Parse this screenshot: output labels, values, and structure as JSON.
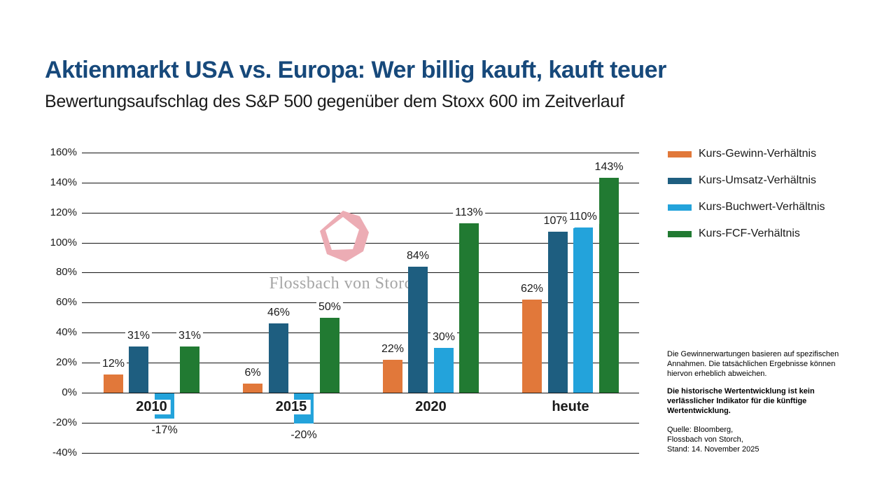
{
  "header": {
    "title": "Aktienmarkt USA vs. Europa: Wer billig kauft, kauft teuer",
    "subtitle": "Bewertungsaufschlag des S&P 500 gegenüber dem Stoxx 600 im Zeitverlauf"
  },
  "colors": {
    "title_navy": "#17497B",
    "watermark_pink": "#ECACB4",
    "watermark_gray": "#A6A6A6",
    "grid_black": "#141414"
  },
  "watermark": {
    "text": "Flossbach von Storch"
  },
  "chart_data": {
    "type": "bar",
    "categories": [
      "2010",
      "2015",
      "2020",
      "heute"
    ],
    "series": [
      {
        "name": "Kurs-Gewinn-Verhältnis",
        "color": "#E1783A",
        "values": [
          12,
          6,
          22,
          62
        ]
      },
      {
        "name": "Kurs-Umsatz-Verhältnis",
        "color": "#1E5E80",
        "values": [
          31,
          46,
          84,
          107
        ]
      },
      {
        "name": "Kurs-Buchwert-Verhältnis",
        "color": "#23A3DB",
        "values": [
          -17,
          -20,
          30,
          110
        ]
      },
      {
        "name": "Kurs-FCF-Verhältnis",
        "color": "#217A32",
        "values": [
          31,
          50,
          113,
          143
        ]
      }
    ],
    "value_suffix": "%",
    "ylim": [
      -40,
      160
    ],
    "ytick_step": 20,
    "grid": true,
    "legend_position": "right",
    "value_labels": true
  },
  "footnotes": {
    "disclaimer_lines": [
      "Die Gewinnerwartungen basieren auf spezifischen",
      "Annahmen. Die tatsächlichen Ergebnisse können",
      "hiervon erheblich abweichen."
    ],
    "warning_lines": [
      "Die historische Wertentwicklung ist kein",
      "verlässlicher Indikator für die künftige",
      "Wertentwicklung."
    ],
    "source_lines": [
      "Quelle: Bloomberg,",
      "Flossbach von Storch,",
      "Stand: 14. November 2025"
    ]
  }
}
